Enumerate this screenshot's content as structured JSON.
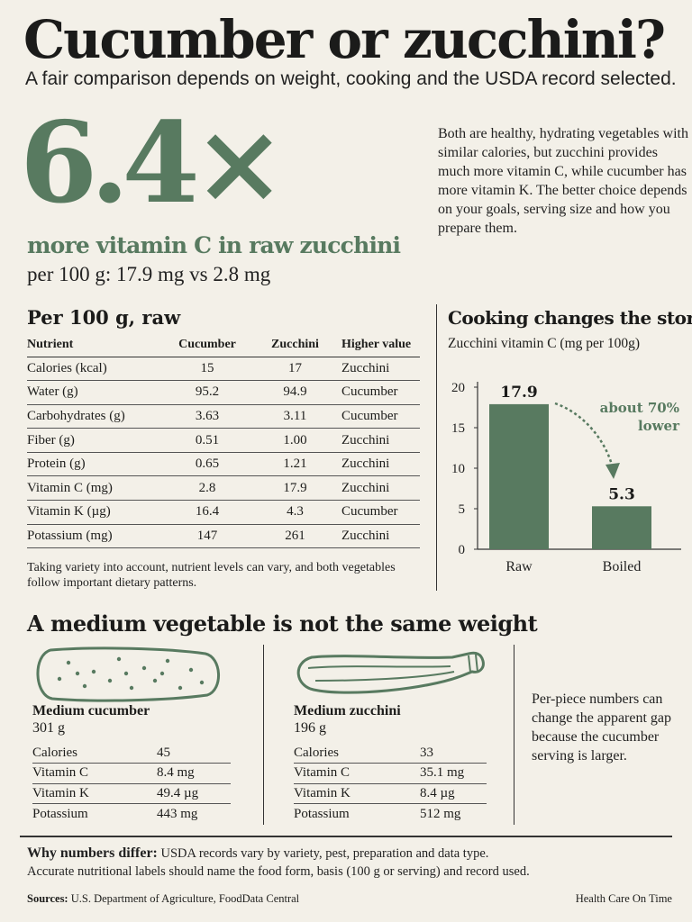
{
  "header": {
    "title": "Cucumber or zucchini?",
    "subtitle": "A fair comparison depends on weight, cooking and the USDA record selected."
  },
  "hero": {
    "big_number": "6.4×",
    "description": "more vitamin C in raw zucchini",
    "detail": "per 100 g: 17.9 mg vs 2.8 mg",
    "intro": "Both are healthy, hydrating vegetables with similar calories, but zucchini provides much more vitamin C, while cucumber has more vitamin K. The better choice depends on your goals, serving size and how you prepare them."
  },
  "per100": {
    "title": "Per 100 g, raw",
    "headers": [
      "Nutrient",
      "Cucumber",
      "Zucchini",
      "Higher value"
    ],
    "rows": [
      [
        "Calories (kcal)",
        "15",
        "17",
        "Zucchini"
      ],
      [
        "Water (g)",
        "95.2",
        "94.9",
        "Cucumber"
      ],
      [
        "Carbohydrates (g)",
        "3.63",
        "3.11",
        "Cucumber"
      ],
      [
        "Fiber (g)",
        "0.51",
        "1.00",
        "Zucchini"
      ],
      [
        "Protein (g)",
        "0.65",
        "1.21",
        "Zucchini"
      ],
      [
        "Vitamin C (mg)",
        "2.8",
        "17.9",
        "Zucchini"
      ],
      [
        "Vitamin K (µg)",
        "16.4",
        "4.3",
        "Cucumber"
      ],
      [
        "Potassium (mg)",
        "147",
        "261",
        "Zucchini"
      ]
    ],
    "note": "Taking variety into account, nutrient levels can vary, and both vegetables follow important dietary patterns."
  },
  "chart_data": {
    "type": "bar",
    "title": "Cooking changes the story",
    "subtitle": "Zucchini vitamin C (mg per 100g)",
    "categories": [
      "Raw",
      "Boiled"
    ],
    "values": [
      17.9,
      5.3
    ],
    "data_labels": [
      "17.9",
      "5.3"
    ],
    "yticks": [
      "0",
      "5",
      "10",
      "15",
      "20"
    ],
    "ylim": [
      0,
      20
    ],
    "annotation": [
      "about 70%",
      "lower"
    ],
    "bar_color": "#587a60",
    "grid": false
  },
  "weights": {
    "title": "A medium vegetable is not the same weight",
    "cucumber": {
      "name": "Medium cucumber",
      "weight": "301 g",
      "rows": [
        [
          "Calories",
          "45"
        ],
        [
          "Vitamin C",
          "8.4 mg"
        ],
        [
          "Vitamin K",
          "49.4 µg"
        ],
        [
          "Potassium",
          "443 mg"
        ]
      ]
    },
    "zucchini": {
      "name": "Medium zucchini",
      "weight": "196 g",
      "rows": [
        [
          "Calories",
          "33"
        ],
        [
          "Vitamin C",
          "35.1 mg"
        ],
        [
          "Vitamin K",
          "8.4 µg"
        ],
        [
          "Potassium",
          "512 mg"
        ]
      ]
    },
    "note": "Per-piece numbers can change the apparent gap because the cucumber serving is larger."
  },
  "footer": {
    "why_label": "Why numbers differ:",
    "why_text": " USDA records vary by variety, pest, preparation and data type.",
    "why_text2": "Accurate nutritional labels should name the food form, basis (100 g or serving) and record used.",
    "sources_label": "Sources:",
    "sources_text": " U.S. Department of Agriculture, FoodData Central",
    "brand": "Health Care On Time"
  },
  "colors": {
    "accent": "#587a60",
    "background": "#f3f0e8",
    "text": "#1d1d1b"
  }
}
